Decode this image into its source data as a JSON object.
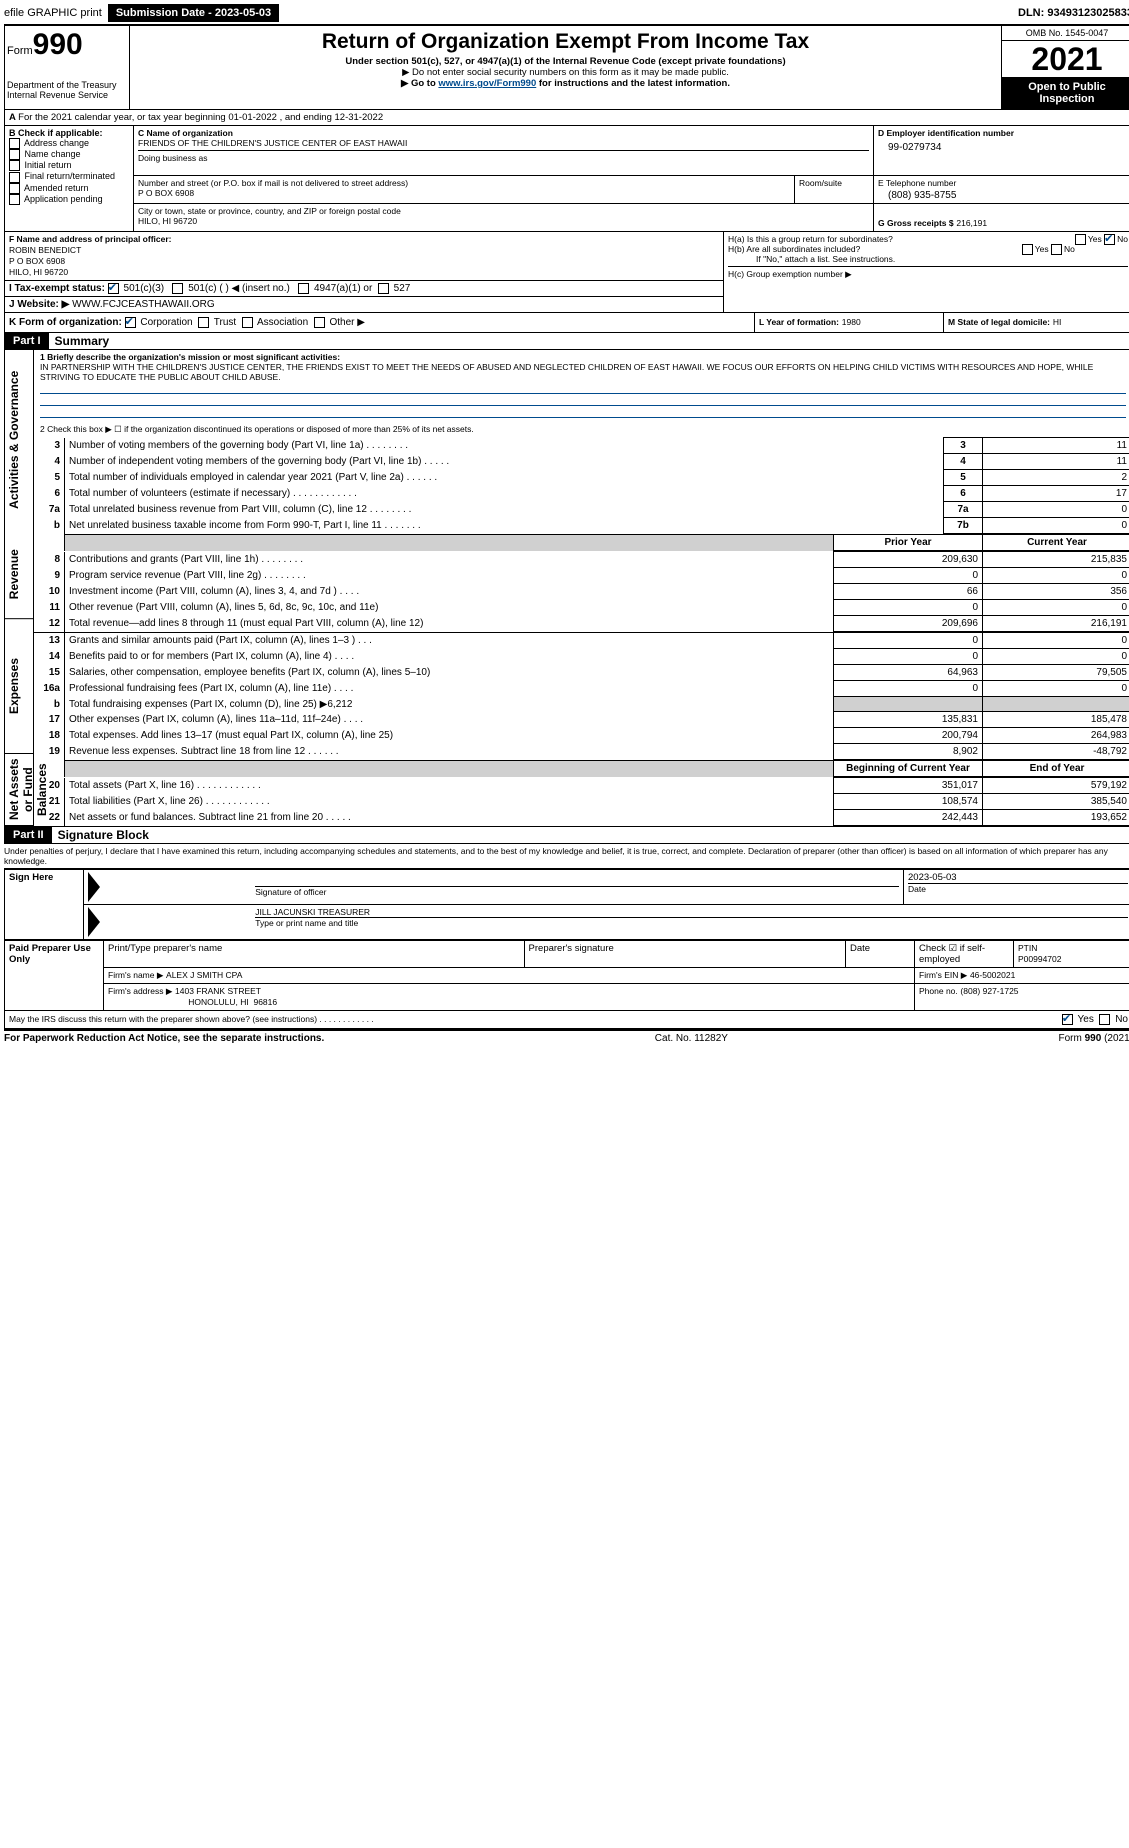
{
  "topbar": {
    "efile": "efile GRAPHIC print",
    "submission_label": "Submission Date - 2023-05-03",
    "dln": "DLN: 93493123025833"
  },
  "header": {
    "form_prefix": "Form",
    "form_number": "990",
    "title": "Return of Organization Exempt From Income Tax",
    "subtitle": "Under section 501(c), 527, or 4947(a)(1) of the Internal Revenue Code (except private foundations)",
    "note1": "▶ Do not enter social security numbers on this form as it may be made public.",
    "note2_pre": "▶ Go to ",
    "note2_link": "www.irs.gov/Form990",
    "note2_post": " for instructions and the latest information.",
    "dept": "Department of the Treasury\nInternal Revenue Service",
    "omb": "OMB No. 1545-0047",
    "year": "2021",
    "open": "Open to Public Inspection"
  },
  "period": {
    "line": "For the 2021 calendar year, or tax year beginning 01-01-2022   , and ending 12-31-2022"
  },
  "boxB": {
    "label": "B Check if applicable:",
    "items": [
      "Address change",
      "Name change",
      "Initial return",
      "Final return/terminated",
      "Amended return",
      "Application pending"
    ]
  },
  "boxC": {
    "name_label": "C Name of organization",
    "name": "FRIENDS OF THE CHILDREN'S JUSTICE CENTER OF EAST HAWAII",
    "dba_label": "Doing business as",
    "addr_label": "Number and street (or P.O. box if mail is not delivered to street address)",
    "room_label": "Room/suite",
    "addr": "P O BOX 6908",
    "city_label": "City or town, state or province, country, and ZIP or foreign postal code",
    "city": "HILO, HI  96720"
  },
  "boxD": {
    "label": "D Employer identification number",
    "value": "99-0279734"
  },
  "boxE": {
    "label": "E Telephone number",
    "value": "(808) 935-8755"
  },
  "boxG": {
    "label": "G Gross receipts $",
    "value": "216,191"
  },
  "boxF": {
    "label": "F Name and address of principal officer:",
    "name": "ROBIN BENEDICT",
    "addr1": "P O BOX 6908",
    "addr2": "HILO, HI  96720"
  },
  "boxH": {
    "ha": "H(a)  Is this a group return for subordinates?",
    "hb": "H(b)  Are all subordinates included?",
    "hb_note": "If \"No,\" attach a list. See instructions.",
    "hc": "H(c)  Group exemption number ▶",
    "yes": "Yes",
    "no": "No"
  },
  "boxI": {
    "label": "I   Tax-exempt status:",
    "opts": [
      "501(c)(3)",
      "501(c) (    ) ◀ (insert no.)",
      "4947(a)(1) or",
      "527"
    ]
  },
  "boxJ": {
    "label": "J   Website: ▶",
    "value": "WWW.FCJCEASTHAWAII.ORG"
  },
  "boxK": {
    "label": "K Form of organization:",
    "opts": [
      "Corporation",
      "Trust",
      "Association",
      "Other ▶"
    ]
  },
  "boxL": {
    "label": "L Year of formation:",
    "value": "1980"
  },
  "boxM": {
    "label": "M State of legal domicile:",
    "value": "HI"
  },
  "part1": {
    "bar": "Part I",
    "title": "Summary",
    "q1_label": "1  Briefly describe the organization's mission or most significant activities:",
    "q1_text": "IN PARTNERSHIP WITH THE CHILDREN'S JUSTICE CENTER, THE FRIENDS EXIST TO MEET THE NEEDS OF ABUSED AND NEGLECTED CHILDREN OF EAST HAWAII. WE FOCUS OUR EFFORTS ON HELPING CHILD VICTIMS WITH RESOURCES AND HOPE, WHILE STRIVING TO EDUCATE THE PUBLIC ABOUT CHILD ABUSE.",
    "q2": "2   Check this box ▶ ☐  if the organization discontinued its operations or disposed of more than 25% of its net assets.",
    "sections": {
      "gov": "Activities & Governance",
      "rev": "Revenue",
      "exp": "Expenses",
      "net": "Net Assets or Fund Balances"
    },
    "lines_gov": [
      {
        "n": "3",
        "d": "Number of voting members of the governing body (Part VI, line 1a)   .    .    .    .    .    .    .    .",
        "box": "3",
        "v": "11"
      },
      {
        "n": "4",
        "d": "Number of independent voting members of the governing body (Part VI, line 1b)   .    .    .    .    .",
        "box": "4",
        "v": "11"
      },
      {
        "n": "5",
        "d": "Total number of individuals employed in calendar year 2021 (Part V, line 2a)   .    .    .    .    .    .",
        "box": "5",
        "v": "2"
      },
      {
        "n": "6",
        "d": "Total number of volunteers (estimate if necessary)   .    .    .    .    .    .    .    .    .    .    .    .",
        "box": "6",
        "v": "17"
      },
      {
        "n": "7a",
        "d": "Total unrelated business revenue from Part VIII, column (C), line 12   .    .    .    .    .    .    .    .",
        "box": "7a",
        "v": "0"
      },
      {
        "n": "b",
        "d": "Net unrelated business taxable income from Form 990-T, Part I, line 11   .    .    .    .    .    .    .",
        "box": "7b",
        "v": "0"
      }
    ],
    "col_headers": {
      "prior": "Prior Year",
      "current": "Current Year"
    },
    "lines_rev": [
      {
        "n": "8",
        "d": "Contributions and grants (Part VIII, line 1h)   .    .    .    .    .    .    .    .",
        "p": "209,630",
        "c": "215,835"
      },
      {
        "n": "9",
        "d": "Program service revenue (Part VIII, line 2g)   .    .    .    .    .    .    .    .",
        "p": "0",
        "c": "0"
      },
      {
        "n": "10",
        "d": "Investment income (Part VIII, column (A), lines 3, 4, and 7d )   .    .    .    .",
        "p": "66",
        "c": "356"
      },
      {
        "n": "11",
        "d": "Other revenue (Part VIII, column (A), lines 5, 6d, 8c, 9c, 10c, and 11e)",
        "p": "0",
        "c": "0"
      },
      {
        "n": "12",
        "d": "Total revenue—add lines 8 through 11 (must equal Part VIII, column (A), line 12)",
        "p": "209,696",
        "c": "216,191"
      }
    ],
    "lines_exp": [
      {
        "n": "13",
        "d": "Grants and similar amounts paid (Part IX, column (A), lines 1–3 )   .    .    .",
        "p": "0",
        "c": "0"
      },
      {
        "n": "14",
        "d": "Benefits paid to or for members (Part IX, column (A), line 4)   .    .    .    .",
        "p": "0",
        "c": "0"
      },
      {
        "n": "15",
        "d": "Salaries, other compensation, employee benefits (Part IX, column (A), lines 5–10)",
        "p": "64,963",
        "c": "79,505"
      },
      {
        "n": "16a",
        "d": "Professional fundraising fees (Part IX, column (A), line 11e)   .    .    .    .",
        "p": "0",
        "c": "0"
      },
      {
        "n": "b",
        "d": "Total fundraising expenses (Part IX, column (D), line 25) ▶6,212",
        "p": "",
        "c": "",
        "grey": true
      },
      {
        "n": "17",
        "d": "Other expenses (Part IX, column (A), lines 11a–11d, 11f–24e)   .    .    .    .",
        "p": "135,831",
        "c": "185,478"
      },
      {
        "n": "18",
        "d": "Total expenses. Add lines 13–17 (must equal Part IX, column (A), line 25)",
        "p": "200,794",
        "c": "264,983"
      },
      {
        "n": "19",
        "d": "Revenue less expenses. Subtract line 18 from line 12   .    .    .    .    .    .",
        "p": "8,902",
        "c": "-48,792"
      }
    ],
    "col_headers2": {
      "begin": "Beginning of Current Year",
      "end": "End of Year"
    },
    "lines_net": [
      {
        "n": "20",
        "d": "Total assets (Part X, line 16)   .    .    .    .    .    .    .    .    .    .    .    .",
        "p": "351,017",
        "c": "579,192"
      },
      {
        "n": "21",
        "d": "Total liabilities (Part X, line 26)   .    .    .    .    .    .    .    .    .    .    .    .",
        "p": "108,574",
        "c": "385,540"
      },
      {
        "n": "22",
        "d": "Net assets or fund balances. Subtract line 21 from line 20   .    .    .    .    .",
        "p": "242,443",
        "c": "193,652"
      }
    ]
  },
  "part2": {
    "bar": "Part II",
    "title": "Signature Block",
    "declaration": "Under penalties of perjury, I declare that I have examined this return, including accompanying schedules and statements, and to the best of my knowledge and belief, it is true, correct, and complete. Declaration of preparer (other than officer) is based on all information of which preparer has any knowledge."
  },
  "sign": {
    "here": "Sign Here",
    "sig_officer": "Signature of officer",
    "date": "Date",
    "sig_date": "2023-05-03",
    "name_title": "JILL JACUNSKI  TREASURER",
    "name_label": "Type or print name and title"
  },
  "paid": {
    "label": "Paid Preparer Use Only",
    "h1": "Print/Type preparer's name",
    "h2": "Preparer's signature",
    "h3": "Date",
    "h4": "Check ☑ if self-employed",
    "h5_label": "PTIN",
    "h5": "P00994702",
    "firm_name_l": "Firm's name    ▶",
    "firm_name": "ALEX J SMITH CPA",
    "firm_ein_l": "Firm's EIN ▶",
    "firm_ein": "46-5002021",
    "firm_addr_l": "Firm's address ▶",
    "firm_addr": "1403 FRANK STREET\n                                  HONOLULU, HI  96816",
    "phone_l": "Phone no.",
    "phone": "(808) 927-1725",
    "discuss": "May the IRS discuss this return with the preparer shown above? (see instructions)   .    .    .    .    .    .    .    .    .    .    .    .",
    "yes": "Yes",
    "no": "No"
  },
  "footer": {
    "left": "For Paperwork Reduction Act Notice, see the separate instructions.",
    "mid": "Cat. No. 11282Y",
    "right": "Form 990 (2021)"
  }
}
